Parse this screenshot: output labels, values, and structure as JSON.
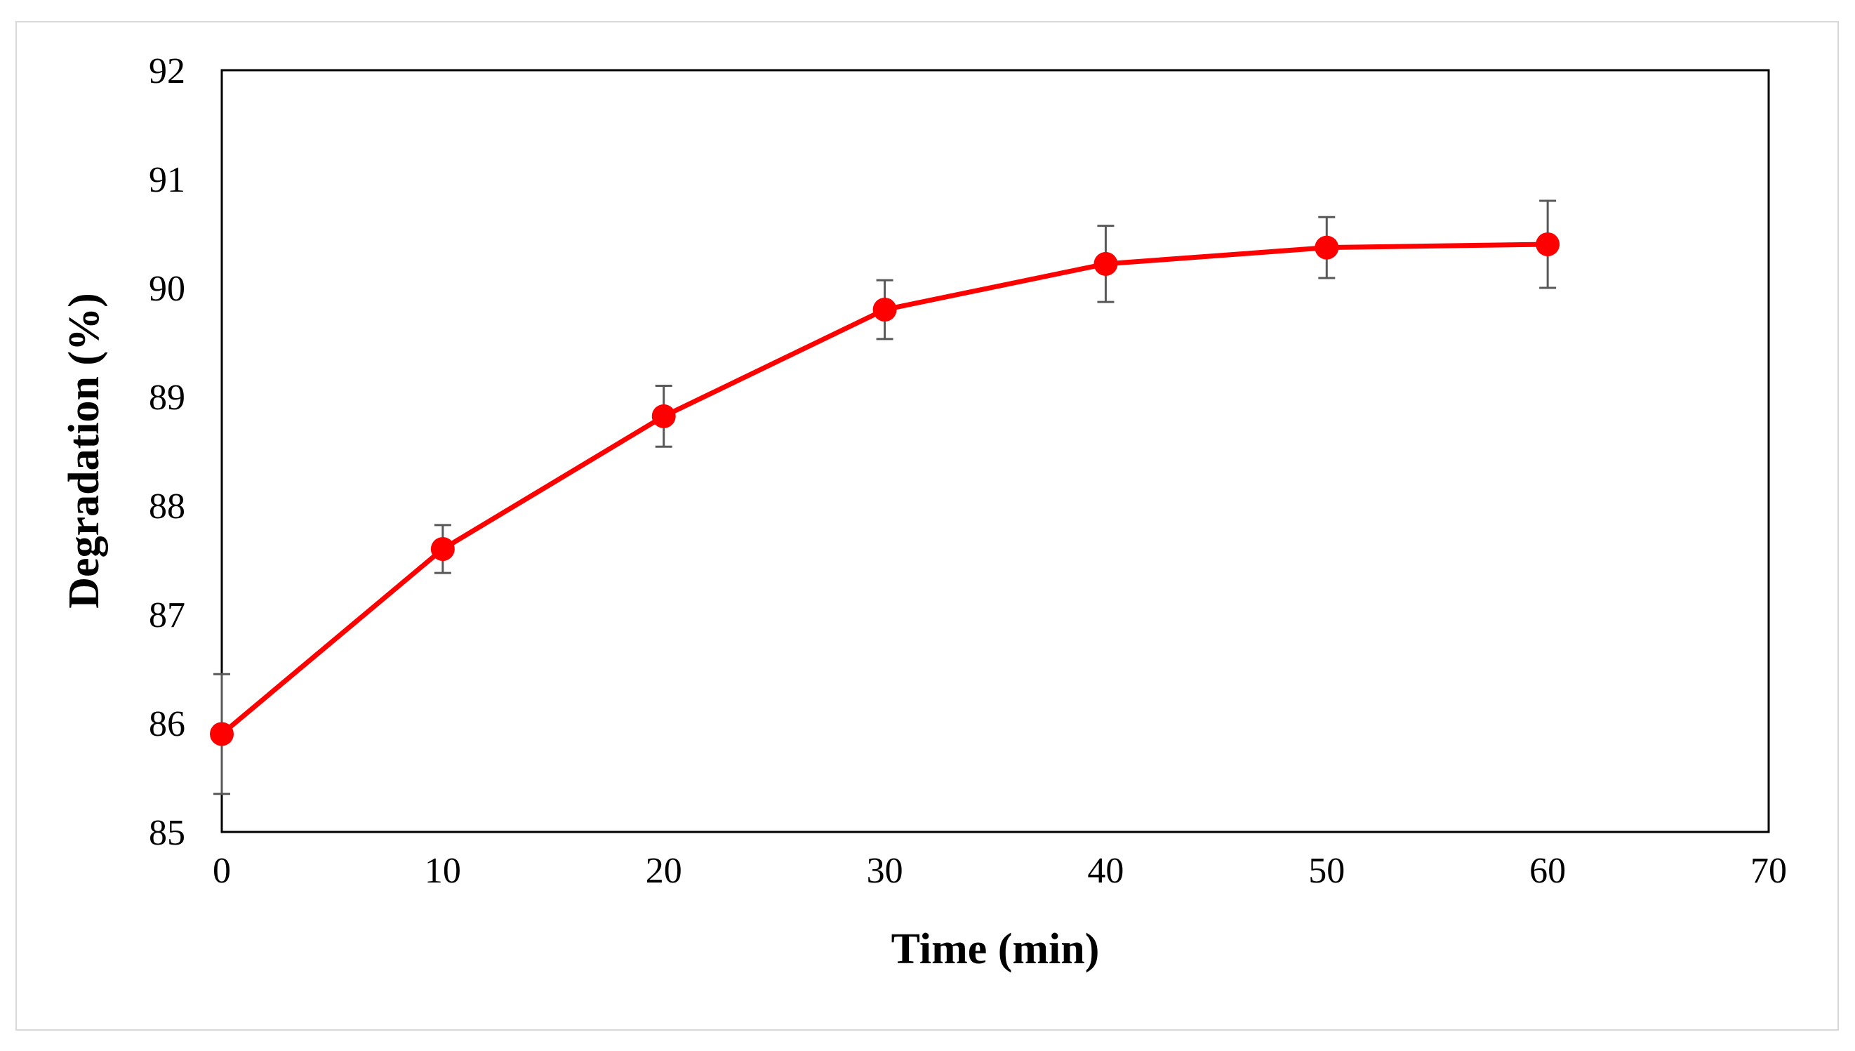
{
  "chart_data": {
    "type": "line",
    "title": "",
    "xlabel": "Time (min)",
    "ylabel": "Degradation (%)",
    "xlim": [
      0,
      70
    ],
    "ylim": [
      85,
      92
    ],
    "xticks": [
      0,
      10,
      20,
      30,
      40,
      50,
      60,
      70
    ],
    "yticks": [
      85,
      86,
      87,
      88,
      89,
      90,
      91,
      92
    ],
    "grid": false,
    "series": [
      {
        "name": "Degradation",
        "color": "#ff0000",
        "x": [
          0,
          10,
          20,
          30,
          40,
          50,
          60
        ],
        "y": [
          85.9,
          87.6,
          88.82,
          89.8,
          90.22,
          90.37,
          90.4
        ],
        "error": [
          0.55,
          0.22,
          0.28,
          0.27,
          0.35,
          0.28,
          0.4
        ]
      }
    ]
  }
}
